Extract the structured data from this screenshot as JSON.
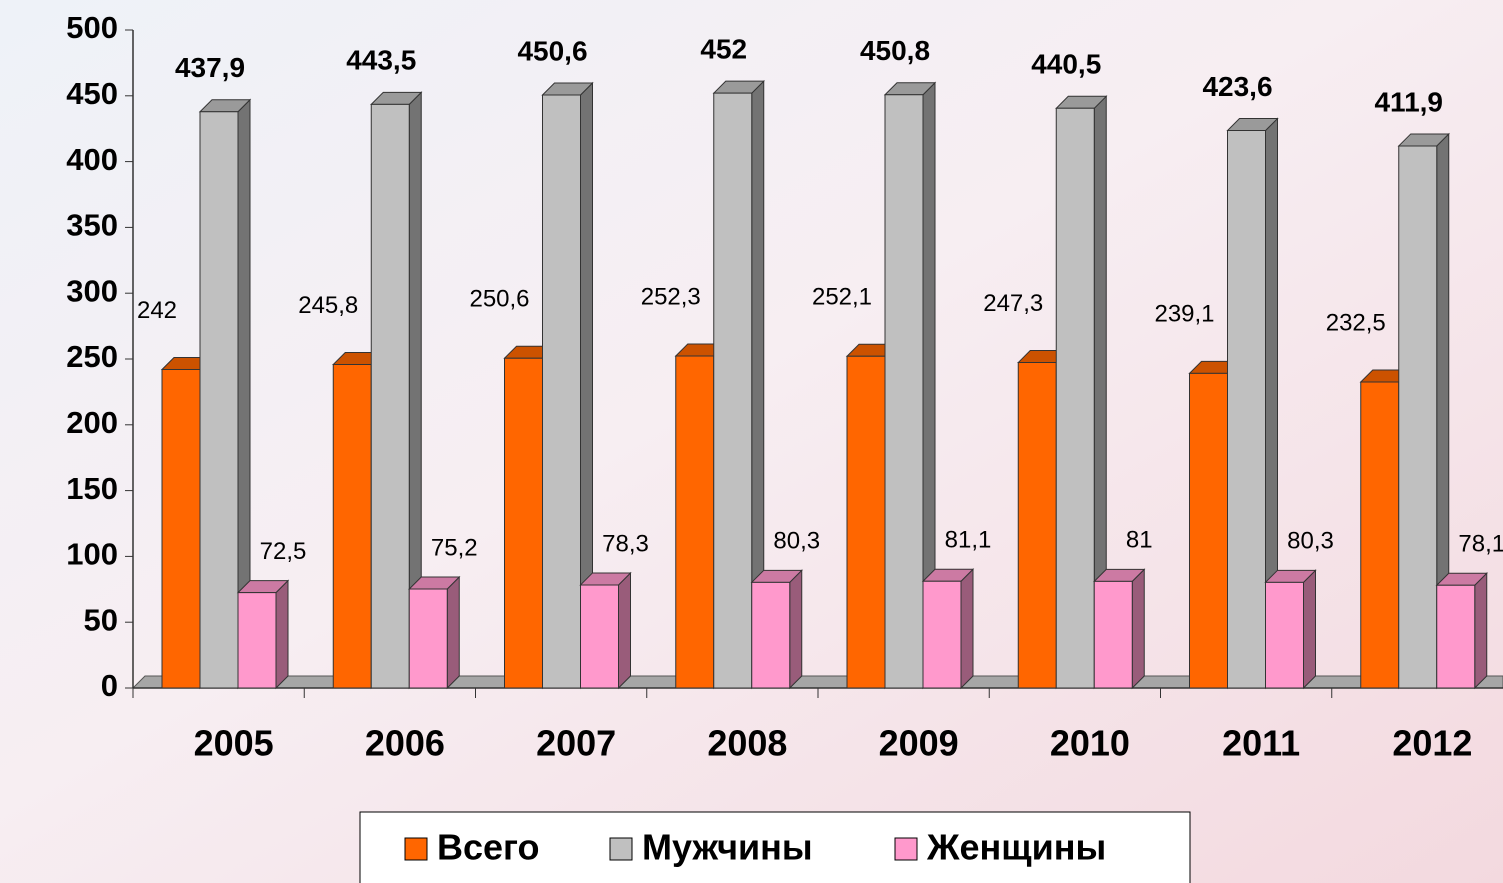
{
  "chart_data": {
    "type": "bar3d",
    "categories": [
      "2005",
      "2006",
      "2007",
      "2008",
      "2009",
      "2010",
      "2011",
      "2012"
    ],
    "series": [
      {
        "name": "Всего",
        "color": "#ff6600",
        "values": [
          242,
          245.8,
          250.6,
          252.3,
          252.1,
          247.3,
          239.1,
          232.5
        ],
        "value_labels": [
          "242",
          "245,8",
          "250,6",
          "252,3",
          "252,1",
          "247,3",
          "239,1",
          "232,5"
        ]
      },
      {
        "name": "Мужчины",
        "color": "#c0c0c0",
        "values": [
          437.9,
          443.5,
          450.6,
          452,
          450.8,
          440.5,
          423.6,
          411.9
        ],
        "value_labels": [
          "437,9",
          "443,5",
          "450,6",
          "452",
          "450,8",
          "440,5",
          "423,6",
          "411,9"
        ]
      },
      {
        "name": "Женщины",
        "color": "#ff99cc",
        "values": [
          72.5,
          75.2,
          78.3,
          80.3,
          81.1,
          81,
          80.3,
          78.1
        ],
        "value_labels": [
          "72,5",
          "75,2",
          "78,3",
          "80,3",
          "81,1",
          "81",
          "80,3",
          "78,1"
        ]
      }
    ],
    "ylim": [
      0,
      500
    ],
    "yticks": [
      0,
      50,
      100,
      150,
      200,
      250,
      300,
      350,
      400,
      450,
      500
    ],
    "legend": "bottom"
  }
}
